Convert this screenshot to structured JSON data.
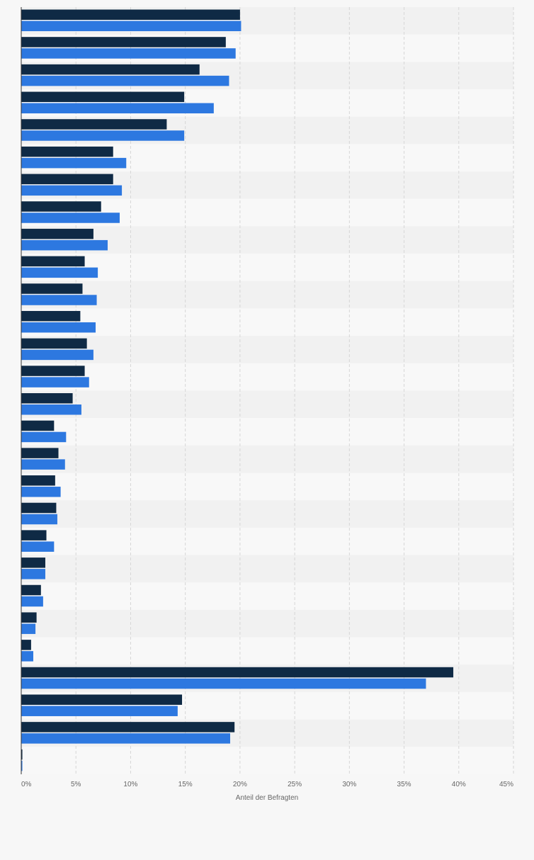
{
  "chart_data": {
    "type": "bar",
    "orientation": "horizontal",
    "xlabel": "Anteil der Befragten",
    "xlim": [
      0,
      45
    ],
    "x_ticks": [
      "0%",
      "5%",
      "10%",
      "15%",
      "20%",
      "25%",
      "30%",
      "35%",
      "40%",
      "45%"
    ],
    "grid": true,
    "grid_style": "dashed vertical",
    "series": [
      {
        "color": "#0f2a45",
        "values": [
          20.0,
          18.7,
          16.3,
          14.9,
          13.3,
          8.4,
          8.4,
          7.3,
          6.6,
          5.8,
          5.6,
          5.4,
          6.0,
          5.8,
          4.7,
          3.0,
          3.4,
          3.1,
          3.2,
          2.3,
          2.2,
          1.8,
          1.4,
          0.9,
          39.5,
          14.7,
          19.5,
          0.1
        ]
      },
      {
        "color": "#2d78e0",
        "values": [
          20.1,
          19.6,
          19.0,
          17.6,
          14.9,
          9.6,
          9.2,
          9.0,
          7.9,
          7.0,
          6.9,
          6.8,
          6.6,
          6.2,
          5.5,
          4.1,
          4.0,
          3.6,
          3.3,
          3.0,
          2.2,
          2.0,
          1.3,
          1.1,
          37.0,
          14.3,
          19.1,
          0.1
        ]
      }
    ]
  }
}
